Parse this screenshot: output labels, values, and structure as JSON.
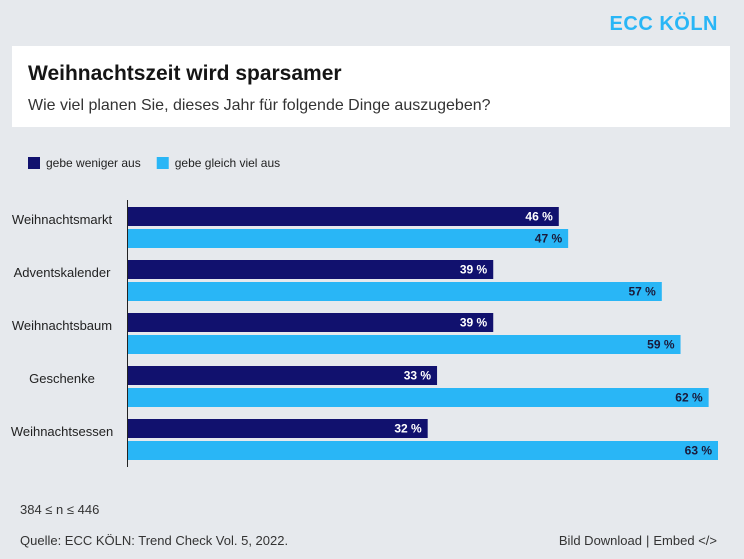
{
  "logo": "ECC KÖLN",
  "chart_data": {
    "type": "bar",
    "orientation": "horizontal",
    "title": "Weihnachtszeit wird sparsamer",
    "subtitle": "Wie viel planen Sie, dieses Jahr für folgende Dinge auszugeben?",
    "categories": [
      "Weihnachtsmarkt",
      "Adventskalender",
      "Weihnachtsbaum",
      "Geschenke",
      "Weihnachtsessen"
    ],
    "series": [
      {
        "name": "gebe weniger aus",
        "color": "#11116e",
        "label_color": "#ffffff",
        "values": [
          46,
          39,
          39,
          33,
          32
        ],
        "value_labels": [
          "46 %",
          "39 %",
          "39 %",
          "33 %",
          "32 %"
        ]
      },
      {
        "name": "gebe gleich viel aus",
        "color": "#29b6f6",
        "label_color": "#1a1a3a",
        "values": [
          47,
          57,
          59,
          62,
          63
        ],
        "value_labels": [
          "47 %",
          "57 %",
          "59 %",
          "62 %",
          "63 %"
        ]
      }
    ],
    "legend": "top-left"
  },
  "note": "384 ≤ n ≤ 446",
  "source": "Quelle: ECC KÖLN: Trend Check Vol. 5, 2022.",
  "links": [
    "Bild Download",
    "|",
    "Embed </>"
  ]
}
